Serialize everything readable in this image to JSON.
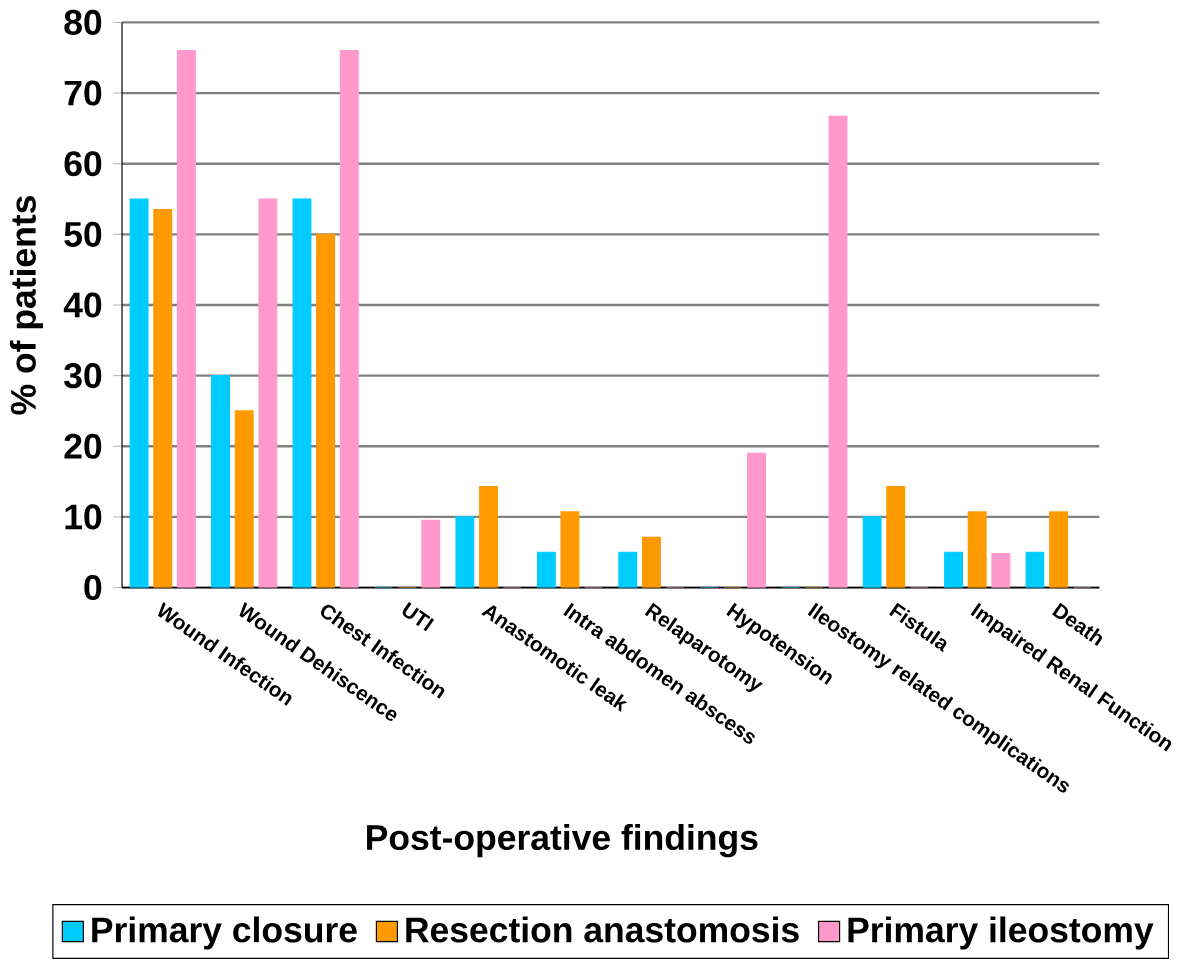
{
  "chart_data": {
    "type": "bar",
    "xlabel": "Post-operative findings",
    "ylabel": "% of patients",
    "categories": [
      "Wound Infection",
      "Wound Dehiscence",
      "Chest Infection",
      "UTI",
      "Anastomotic leak",
      "Intra abdomen abscess",
      "Relaparotomy",
      "Hypotension",
      "Ileostomy related complications",
      "Fistula",
      "Impaired Renal Function",
      "Death"
    ],
    "series": [
      {
        "name": "Primary closure",
        "color": "#00ccff",
        "values": [
          55,
          30,
          55,
          0,
          10,
          5,
          5,
          0,
          0,
          10,
          5,
          5
        ]
      },
      {
        "name": "Resection anastomosis",
        "color": "#ff9900",
        "values": [
          53.5,
          25,
          50,
          0,
          14.3,
          10.7,
          7.1,
          0,
          0,
          14.3,
          10.7,
          10.7
        ]
      },
      {
        "name": "Primary ileostomy",
        "color": "#ff99cc",
        "values": [
          76,
          55,
          76,
          9.5,
          0,
          0,
          0,
          19,
          66.7,
          0,
          4.8,
          0
        ]
      }
    ],
    "ylim": [
      0,
      80
    ],
    "yticks": [
      0,
      10,
      20,
      30,
      40,
      50,
      60,
      70,
      80
    ],
    "grid": "y",
    "legend": "bottom"
  }
}
